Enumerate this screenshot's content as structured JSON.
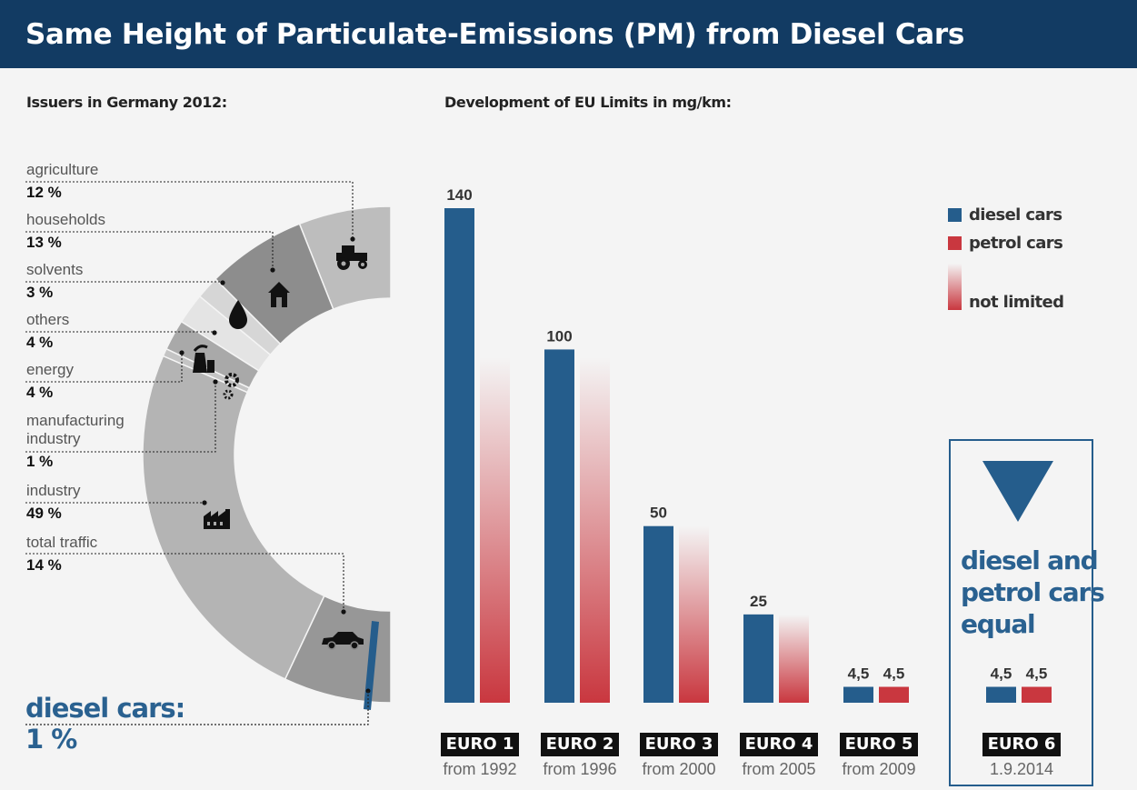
{
  "title": "Same Height of Particulate-Emissions (PM) from Diesel Cars",
  "left_heading": "Issuers in Germany 2012:",
  "right_heading": "Development of EU Limits in mg/km:",
  "issuers": [
    {
      "name": "agriculture",
      "share": "12 %",
      "value": 12,
      "icon": "tractor-icon"
    },
    {
      "name": "households",
      "share": "13 %",
      "value": 13,
      "icon": "house-icon"
    },
    {
      "name": "solvents",
      "share": "3 %",
      "value": 3,
      "icon": "drop-icon"
    },
    {
      "name": "others",
      "share": "4 %",
      "value": 4,
      "icon": "none"
    },
    {
      "name": "energy",
      "share": "4 %",
      "value": 4,
      "icon": "power-plant-icon"
    },
    {
      "name": "manufacturing\nindustry",
      "share": "1 %",
      "value": 1,
      "icon": "gears-icon"
    },
    {
      "name": "industry",
      "share": "49 %",
      "value": 49,
      "icon": "factory-icon"
    },
    {
      "name": "total traffic",
      "share": "14 %",
      "value": 14,
      "icon": "car-icon"
    }
  ],
  "diesel_cars_share": {
    "label": "diesel cars:",
    "value": "1 %"
  },
  "legend": {
    "diesel": "diesel cars",
    "petrol": "petrol cars",
    "not_limited": "not limited"
  },
  "equal_text": "diesel and\npetrol cars\nequal",
  "colors": {
    "header": "#123b63",
    "diesel": "#255d8c",
    "petrol": "#c9373f",
    "accent_text": "#2a6190"
  },
  "chart_data": {
    "type": "bar",
    "title": "Development of EU Limits in mg/km:",
    "categories": [
      "EURO 1",
      "EURO 2",
      "EURO 3",
      "EURO 4",
      "EURO 5",
      "EURO 6"
    ],
    "dates": [
      "from 1992",
      "from 1996",
      "from 2000",
      "from 2005",
      "from 2009",
      "1.9.2014"
    ],
    "series": [
      {
        "name": "diesel cars",
        "values": [
          140,
          100,
          50,
          25,
          4.5,
          4.5
        ],
        "labels": [
          "140",
          "100",
          "50",
          "25",
          "4,5",
          "4,5"
        ]
      },
      {
        "name": "petrol cars",
        "values": [
          null,
          null,
          null,
          null,
          4.5,
          4.5
        ],
        "labels": [
          "",
          "",
          "",
          "",
          "4,5",
          "4,5"
        ],
        "note": "not limited"
      }
    ],
    "ylim": [
      0,
      150
    ]
  }
}
